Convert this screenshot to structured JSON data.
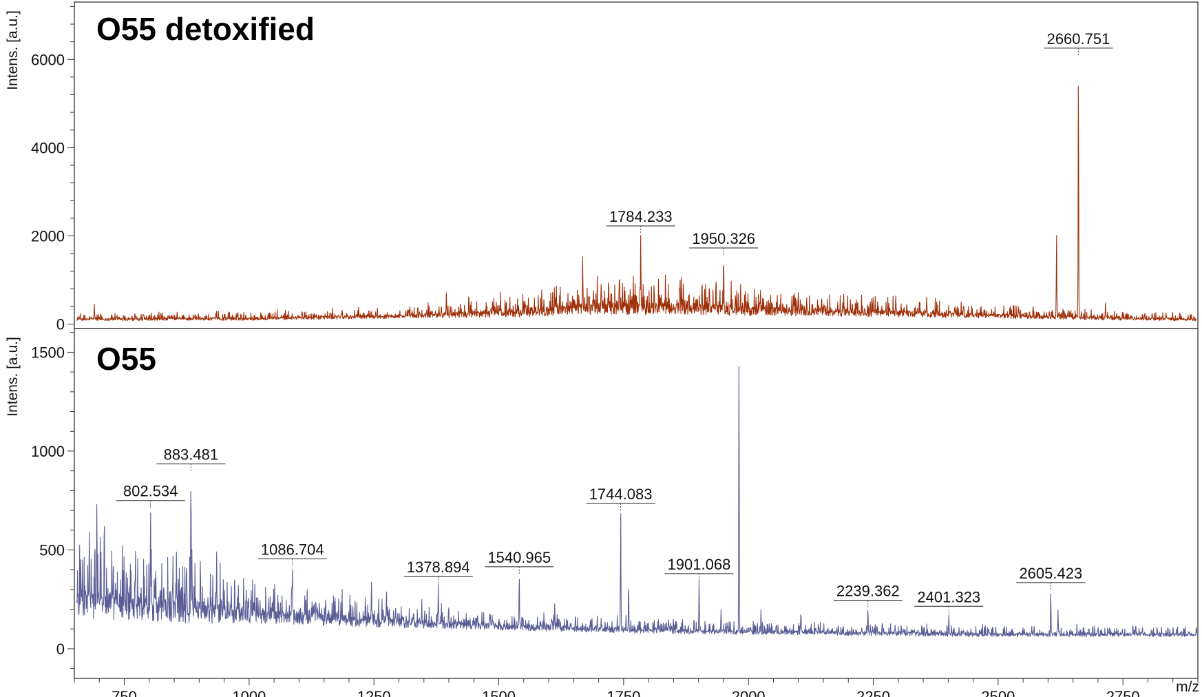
{
  "chart_data": [
    {
      "type": "line",
      "panel": "top",
      "title": "O55 detoxified",
      "ylabel": "Intens. [a.u.]",
      "xlabel": "m/z",
      "xlim": [
        650,
        2900
      ],
      "ylim": [
        -100,
        7300
      ],
      "yticks": [
        0,
        2000,
        4000,
        6000
      ],
      "grid": false,
      "color": "#a0300a",
      "baseline": [
        [
          650,
          100
        ],
        [
          1000,
          120
        ],
        [
          1300,
          170
        ],
        [
          1500,
          230
        ],
        [
          1650,
          330
        ],
        [
          1750,
          360
        ],
        [
          1900,
          330
        ],
        [
          2050,
          280
        ],
        [
          2300,
          230
        ],
        [
          2500,
          180
        ],
        [
          2700,
          130
        ],
        [
          2900,
          100
        ]
      ],
      "noise_amplitude": [
        [
          650,
          60
        ],
        [
          1300,
          90
        ],
        [
          1550,
          220
        ],
        [
          1750,
          330
        ],
        [
          1950,
          280
        ],
        [
          2100,
          200
        ],
        [
          2300,
          170
        ],
        [
          2500,
          110
        ],
        [
          2900,
          60
        ]
      ],
      "peaks": [
        {
          "x": 2660.751,
          "y": 6100,
          "label": "2660.751"
        },
        {
          "x": 2617,
          "y": 2050
        },
        {
          "x": 1784.233,
          "y": 2070,
          "label": "1784.233"
        },
        {
          "x": 1950.326,
          "y": 1570,
          "label": "1950.326"
        },
        {
          "x": 1668,
          "y": 1550
        },
        {
          "x": 1863,
          "y": 1060
        },
        {
          "x": 1907,
          "y": 1000
        },
        {
          "x": 1935,
          "y": 1080
        },
        {
          "x": 1720,
          "y": 1050
        },
        {
          "x": 1705,
          "y": 900
        },
        {
          "x": 2715,
          "y": 480
        },
        {
          "x": 2640,
          "y": 330
        },
        {
          "x": 1395,
          "y": 720
        },
        {
          "x": 1440,
          "y": 700
        },
        {
          "x": 2100,
          "y": 750
        },
        {
          "x": 2295,
          "y": 650
        },
        {
          "x": 690,
          "y": 450
        }
      ]
    },
    {
      "type": "line",
      "panel": "bottom",
      "title": "O55",
      "ylabel": "Intens. [a.u.]",
      "xlabel": "m/z",
      "xlim": [
        650,
        2900
      ],
      "ylim": [
        -150,
        1620
      ],
      "yticks": [
        0,
        500,
        1000,
        1500
      ],
      "xticks": [
        750,
        1000,
        1250,
        1500,
        1750,
        2000,
        2250,
        2500,
        2750
      ],
      "grid": false,
      "color": "#5b5d96",
      "baseline": [
        [
          650,
          220
        ],
        [
          800,
          200
        ],
        [
          1000,
          170
        ],
        [
          1200,
          140
        ],
        [
          1500,
          110
        ],
        [
          1800,
          90
        ],
        [
          2100,
          80
        ],
        [
          2500,
          70
        ],
        [
          2900,
          70
        ]
      ],
      "noise_amplitude": [
        [
          650,
          150
        ],
        [
          900,
          130
        ],
        [
          1000,
          90
        ],
        [
          1200,
          60
        ],
        [
          1500,
          35
        ],
        [
          2000,
          25
        ],
        [
          2900,
          20
        ]
      ],
      "peaks": [
        {
          "x": 1981,
          "y": 1540
        },
        {
          "x": 883.481,
          "y": 900,
          "label": "883.481"
        },
        {
          "x": 802.534,
          "y": 715,
          "label": "802.534"
        },
        {
          "x": 1744.083,
          "y": 700,
          "label": "1744.083"
        },
        {
          "x": 1086.704,
          "y": 420,
          "label": "1086.704"
        },
        {
          "x": 1378.894,
          "y": 330,
          "label": "1378.894"
        },
        {
          "x": 1540.965,
          "y": 380,
          "label": "1540.965"
        },
        {
          "x": 1901.068,
          "y": 345,
          "label": "1901.068"
        },
        {
          "x": 2239.362,
          "y": 210,
          "label": "2239.362"
        },
        {
          "x": 2401.323,
          "y": 180,
          "label": "2401.323"
        },
        {
          "x": 2605.423,
          "y": 300,
          "label": "2605.423"
        },
        {
          "x": 1760,
          "y": 340
        },
        {
          "x": 2620,
          "y": 200
        },
        {
          "x": 695,
          "y": 740
        },
        {
          "x": 710,
          "y": 700
        },
        {
          "x": 680,
          "y": 620
        },
        {
          "x": 935,
          "y": 490
        },
        {
          "x": 1245,
          "y": 340
        },
        {
          "x": 1275,
          "y": 300
        },
        {
          "x": 1612,
          "y": 230
        },
        {
          "x": 1945,
          "y": 200
        },
        {
          "x": 2025,
          "y": 200
        },
        {
          "x": 2105,
          "y": 190
        }
      ]
    }
  ]
}
